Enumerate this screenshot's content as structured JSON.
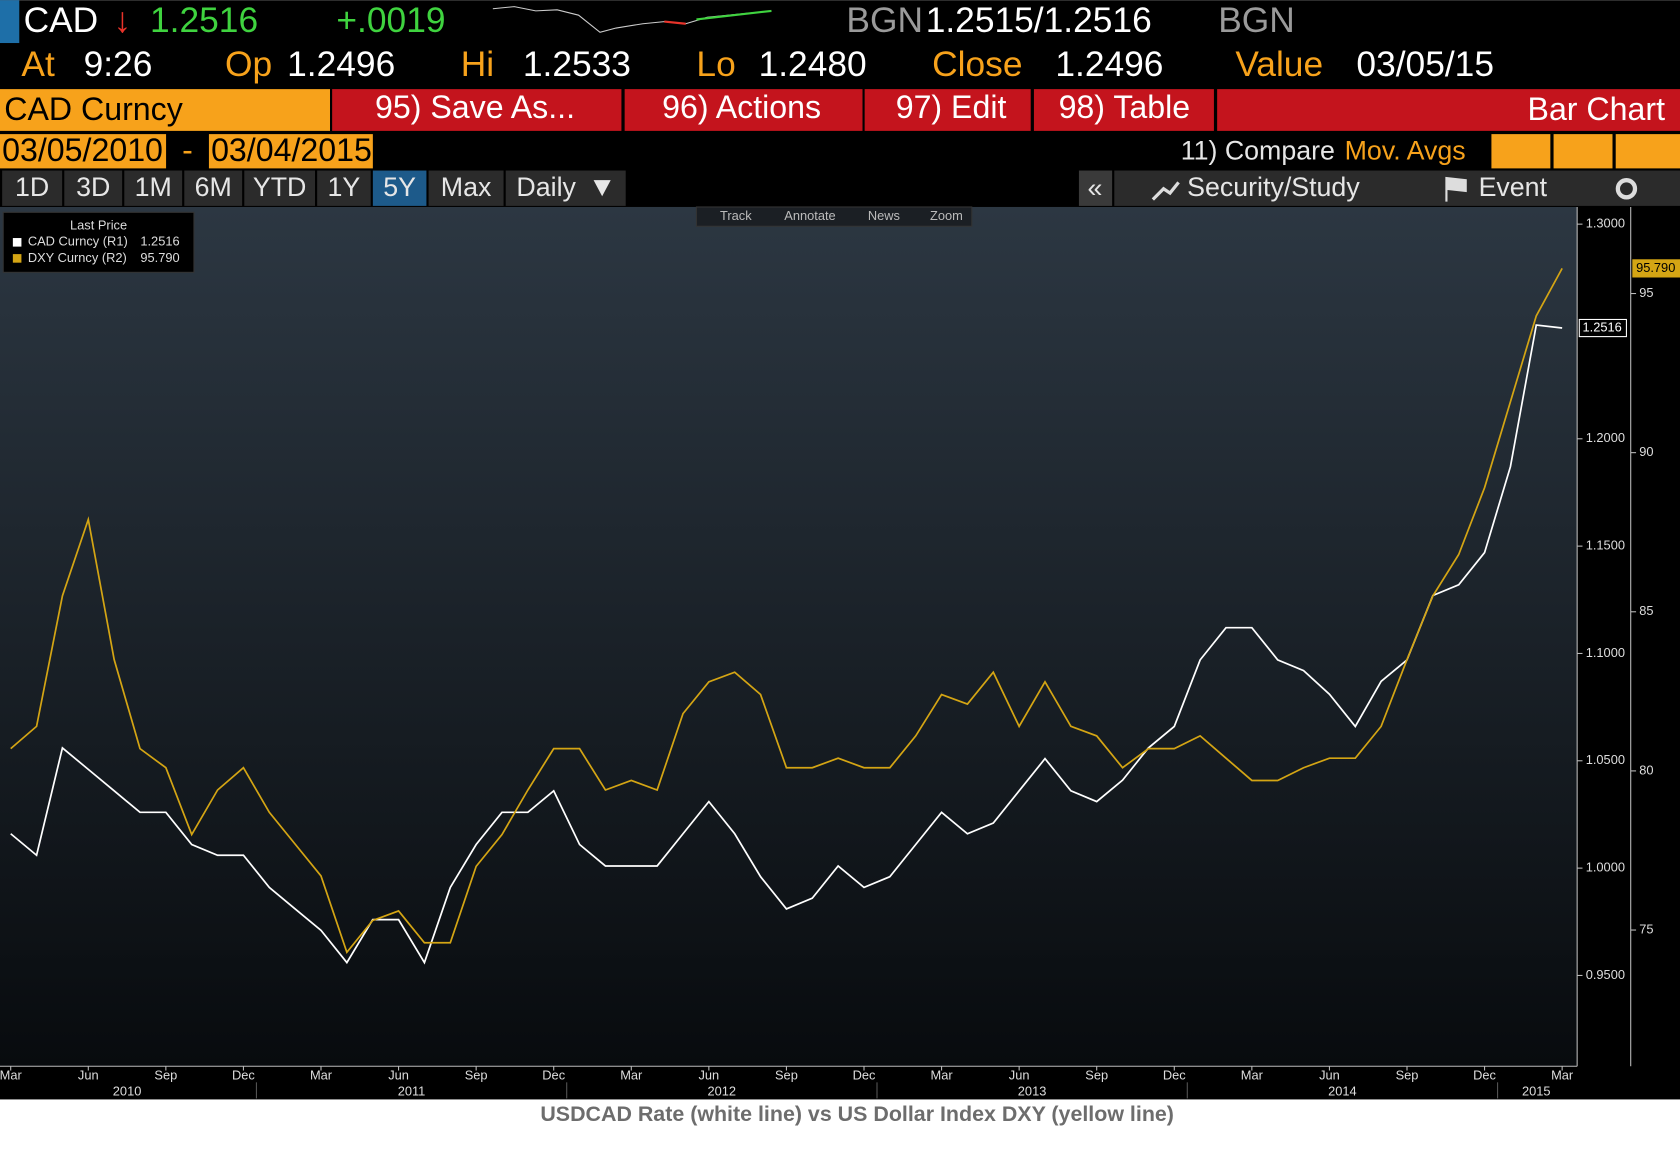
{
  "header": {
    "ticker": "CAD",
    "last": "1.2516",
    "change": "+.0019",
    "source_left": "BGN",
    "bid_ask": "1.2515/1.2516",
    "source_right": "BGN",
    "at_label": "At",
    "at_value": "9:26",
    "open_label": "Op",
    "open_value": "1.2496",
    "high_label": "Hi",
    "high_value": "1.2533",
    "low_label": "Lo",
    "low_value": "1.2480",
    "close_label": "Close",
    "close_value": "1.2496",
    "value_label": "Value",
    "value_date": "03/05/15"
  },
  "toolbar": {
    "security": "CAD Curncy",
    "buttons": [
      "95) Save As...",
      "96) Actions",
      "97) Edit",
      "98) Table"
    ],
    "chart_kind": "Bar Chart"
  },
  "range": {
    "start": "03/05/2010",
    "dash": "-",
    "end": "03/04/2015",
    "compare": "11) Compare",
    "mov_avgs": "Mov. Avgs"
  },
  "tabs": {
    "periods": [
      "1D",
      "3D",
      "1M",
      "6M",
      "YTD",
      "1Y",
      "5Y",
      "Max"
    ],
    "frequency": "Daily",
    "collapse": "«",
    "security_study": "Security/Study",
    "event": "Event"
  },
  "chart_tools": [
    "Track",
    "Annotate",
    "News",
    "Zoom"
  ],
  "chart_data": {
    "type": "line",
    "legend_title": "Last Price",
    "caption": "USDCAD Rate (white line) vs US Dollar Index DXY (yellow line)",
    "x": [
      "2010-03",
      "2010-04",
      "2010-05",
      "2010-06",
      "2010-07",
      "2010-08",
      "2010-09",
      "2010-10",
      "2010-11",
      "2010-12",
      "2011-01",
      "2011-02",
      "2011-03",
      "2011-04",
      "2011-05",
      "2011-06",
      "2011-07",
      "2011-08",
      "2011-09",
      "2011-10",
      "2011-11",
      "2011-12",
      "2012-01",
      "2012-02",
      "2012-03",
      "2012-04",
      "2012-05",
      "2012-06",
      "2012-07",
      "2012-08",
      "2012-09",
      "2012-10",
      "2012-11",
      "2012-12",
      "2013-01",
      "2013-02",
      "2013-03",
      "2013-04",
      "2013-05",
      "2013-06",
      "2013-07",
      "2013-08",
      "2013-09",
      "2013-10",
      "2013-11",
      "2013-12",
      "2014-01",
      "2014-02",
      "2014-03",
      "2014-04",
      "2014-05",
      "2014-06",
      "2014-07",
      "2014-08",
      "2014-09",
      "2014-10",
      "2014-11",
      "2014-12",
      "2015-01",
      "2015-02",
      "2015-03"
    ],
    "series": [
      {
        "name": "CAD Curncy  (R1)",
        "color": "#ffffff",
        "axis": "y",
        "last_price_label": "1.2516",
        "values": [
          1.016,
          1.006,
          1.056,
          1.046,
          1.036,
          1.026,
          1.026,
          1.011,
          1.006,
          1.006,
          0.991,
          0.981,
          0.971,
          0.956,
          0.976,
          0.976,
          0.956,
          0.991,
          1.011,
          1.026,
          1.026,
          1.036,
          1.011,
          1.001,
          1.001,
          1.001,
          1.016,
          1.031,
          1.016,
          0.996,
          0.981,
          0.986,
          1.001,
          0.991,
          0.996,
          1.011,
          1.026,
          1.016,
          1.021,
          1.036,
          1.051,
          1.036,
          1.031,
          1.041,
          1.056,
          1.066,
          1.097,
          1.112,
          1.112,
          1.097,
          1.092,
          1.081,
          1.066,
          1.087,
          1.097,
          1.127,
          1.132,
          1.147,
          1.187,
          1.253,
          1.2516
        ]
      },
      {
        "name": "DXY Curncy  (R2)",
        "color": "#d4a514",
        "axis": "y2",
        "last_price_label": "95.790",
        "values": [
          80.7,
          81.4,
          85.5,
          87.9,
          83.5,
          80.7,
          80.1,
          78.0,
          79.4,
          80.1,
          78.7,
          77.7,
          76.7,
          74.3,
          75.3,
          75.6,
          74.6,
          74.6,
          77.0,
          78.0,
          79.4,
          80.7,
          80.7,
          79.4,
          79.7,
          79.4,
          81.8,
          82.8,
          83.1,
          82.4,
          80.1,
          80.1,
          80.4,
          80.1,
          80.1,
          81.1,
          82.4,
          82.1,
          83.1,
          81.4,
          82.8,
          81.4,
          81.1,
          80.1,
          80.7,
          80.7,
          81.1,
          80.4,
          79.7,
          79.7,
          80.1,
          80.4,
          80.4,
          81.4,
          83.5,
          85.5,
          86.8,
          88.9,
          91.6,
          94.3,
          95.79
        ]
      }
    ],
    "ylim": [
      0.9077,
      1.308
    ],
    "yticks": [
      {
        "value": 0.95,
        "label": "0.9500"
      },
      {
        "value": 1.0,
        "label": "1.0000"
      },
      {
        "value": 1.05,
        "label": "1.0500"
      },
      {
        "value": 1.1,
        "label": "1.1000"
      },
      {
        "value": 1.15,
        "label": "1.1500"
      },
      {
        "value": 1.2,
        "label": "1.2000"
      },
      {
        "value": 1.3,
        "label": "1.3000"
      }
    ],
    "y2lim": [
      70.72,
      97.72
    ],
    "y2ticks": [
      75,
      80,
      85,
      90,
      95
    ],
    "xticks": [
      {
        "value": "2010-03",
        "label": "Mar"
      },
      {
        "value": "2010-06",
        "label": "Jun"
      },
      {
        "value": "2010-09",
        "label": "Sep"
      },
      {
        "value": "2010-12",
        "label": "Dec"
      },
      {
        "value": "2011-03",
        "label": "Mar"
      },
      {
        "value": "2011-06",
        "label": "Jun"
      },
      {
        "value": "2011-09",
        "label": "Sep"
      },
      {
        "value": "2011-12",
        "label": "Dec"
      },
      {
        "value": "2012-03",
        "label": "Mar"
      },
      {
        "value": "2012-06",
        "label": "Jun"
      },
      {
        "value": "2012-09",
        "label": "Sep"
      },
      {
        "value": "2012-12",
        "label": "Dec"
      },
      {
        "value": "2013-03",
        "label": "Mar"
      },
      {
        "value": "2013-06",
        "label": "Jun"
      },
      {
        "value": "2013-09",
        "label": "Sep"
      },
      {
        "value": "2013-12",
        "label": "Dec"
      },
      {
        "value": "2014-03",
        "label": "Mar"
      },
      {
        "value": "2014-06",
        "label": "Jun"
      },
      {
        "value": "2014-09",
        "label": "Sep"
      },
      {
        "value": "2014-12",
        "label": "Dec"
      },
      {
        "value": "2015-03",
        "label": "Mar"
      }
    ],
    "year_labels": [
      "2010",
      "2011",
      "2012",
      "2013",
      "2014",
      "2015"
    ],
    "grid": false
  }
}
